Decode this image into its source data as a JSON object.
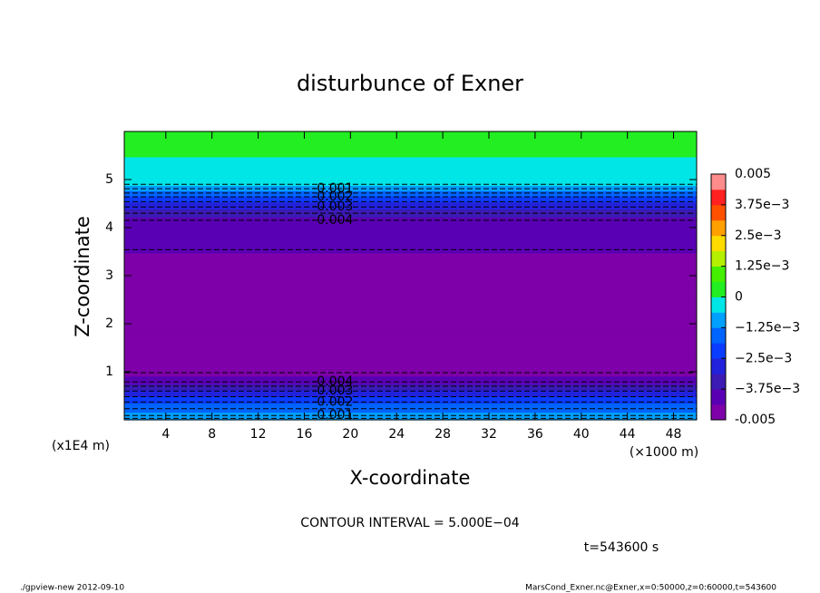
{
  "chart_data": {
    "type": "contour",
    "title": "disturbunce of Exner",
    "xlabel": "X-coordinate",
    "ylabel": "Z-coordinate",
    "xunit": "(×1000 m)",
    "yunit": "(x1E4 m)",
    "xlim": [
      0.4,
      50
    ],
    "xticks": [
      4,
      8,
      12,
      16,
      20,
      24,
      28,
      32,
      36,
      40,
      44,
      48
    ],
    "ylim": [
      0,
      6
    ],
    "yticks": [
      1,
      2,
      3,
      4,
      5
    ],
    "field": {
      "z": [
        0,
        0.09,
        0.37,
        0.6,
        0.79,
        1.0,
        2.0,
        3.3,
        3.6,
        4.15,
        4.43,
        4.64,
        4.81,
        4.95,
        6.0
      ],
      "values": [
        -0.0008,
        -0.001,
        -0.002,
        -0.003,
        -0.004,
        -0.0046,
        -0.0049,
        -0.0046,
        -0.0042,
        -0.004,
        -0.003,
        -0.002,
        -0.001,
        -0.0002,
        0.0002
      ]
    },
    "contours": [
      {
        "level": -0.0005,
        "z": [
          0.03,
          4.9
        ],
        "labeled": false
      },
      {
        "level": -0.001,
        "z": [
          0.09,
          4.81
        ],
        "labeled": true
      },
      {
        "level": -0.0015,
        "z": [
          0.23,
          4.72
        ],
        "labeled": false
      },
      {
        "level": -0.002,
        "z": [
          0.37,
          4.64
        ],
        "labeled": true
      },
      {
        "level": -0.0025,
        "z": [
          0.48,
          4.54
        ],
        "labeled": false
      },
      {
        "level": -0.003,
        "z": [
          0.6,
          4.43
        ],
        "labeled": true
      },
      {
        "level": -0.0035,
        "z": [
          0.7,
          4.3
        ],
        "labeled": false
      },
      {
        "level": -0.004,
        "z": [
          0.79,
          4.15
        ],
        "labeled": true
      },
      {
        "level": -0.0045,
        "z": [
          0.98,
          3.54
        ],
        "labeled": false
      }
    ],
    "colorbar": {
      "lim": [
        -0.005,
        0.005
      ],
      "colors": [
        "#7d00a8",
        "#5a00b4",
        "#3c1ab4",
        "#2222dc",
        "#0a3cff",
        "#0064ff",
        "#00a0ff",
        "#00e6e6",
        "#22ee22",
        "#44f000",
        "#b4f000",
        "#ffdc00",
        "#ffa000",
        "#ff5000",
        "#ff2020",
        "#ff8c8c"
      ],
      "ticks": [
        -0.005,
        {
          "value": -0.00375,
          "label": "−3.75e−3"
        },
        {
          "value": -0.0025,
          "label": "−2.5e−3"
        },
        {
          "value": -0.00125,
          "label": "−1.25e−3"
        },
        0,
        {
          "value": 0.00125,
          "label": "1.25e−3"
        },
        {
          "value": 0.0025,
          "label": "2.5e−3"
        },
        {
          "value": 0.00375,
          "label": "3.75e−3"
        },
        0.005
      ]
    },
    "interval_note": "CONTOUR INTERVAL = 5.000E−04",
    "time_note": "t=543600 s",
    "footer_left": "./gpview-new  2012-09-10",
    "footer_right": "MarsCond_Exner.nc@Exner,x=0:50000,z=0:60000,t=543600"
  }
}
